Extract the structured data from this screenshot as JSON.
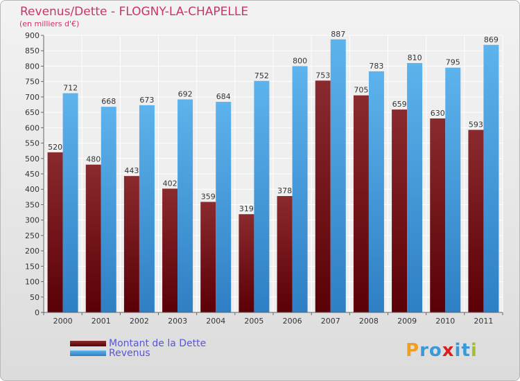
{
  "header": {
    "title": "Revenus/Dette - FLOGNY-LA-CHAPELLE",
    "subtitle": "(en milliers d'€)"
  },
  "legend": {
    "items": [
      {
        "label": "Montant de la Dette",
        "color": "#6b0f14"
      },
      {
        "label": "Revenus",
        "color": "#4da6e8"
      }
    ]
  },
  "logo": {
    "letters": [
      {
        "char": "P",
        "color": "#f0a020"
      },
      {
        "char": "r",
        "color": "#3a9ad9"
      },
      {
        "char": "o",
        "color": "#3a9ad9"
      },
      {
        "char": "x",
        "color": "#d92020"
      },
      {
        "char": "i",
        "color": "#3a9ad9"
      },
      {
        "char": "t",
        "color": "#3a9ad9"
      },
      {
        "char": "i",
        "color": "#a0c030"
      }
    ]
  },
  "chart_data": {
    "type": "bar",
    "title": "Revenus/Dette - FLOGNY-LA-CHAPELLE",
    "ylabel": "(en milliers d'€)",
    "ylim": [
      0,
      900
    ],
    "ytick_step": 50,
    "grid": true,
    "legend_position": "bottom-left",
    "categories": [
      "2000",
      "2001",
      "2002",
      "2003",
      "2004",
      "2005",
      "2006",
      "2007",
      "2008",
      "2009",
      "2010",
      "2011"
    ],
    "series": [
      {
        "name": "Montant de la Dette",
        "color": "#6b0f14",
        "values": [
          520,
          480,
          443,
          402,
          359,
          319,
          378,
          753,
          705,
          659,
          630,
          593
        ]
      },
      {
        "name": "Revenus",
        "color": "#4da6e8",
        "values": [
          712,
          668,
          673,
          692,
          684,
          752,
          800,
          887,
          783,
          810,
          795,
          869
        ]
      }
    ]
  }
}
